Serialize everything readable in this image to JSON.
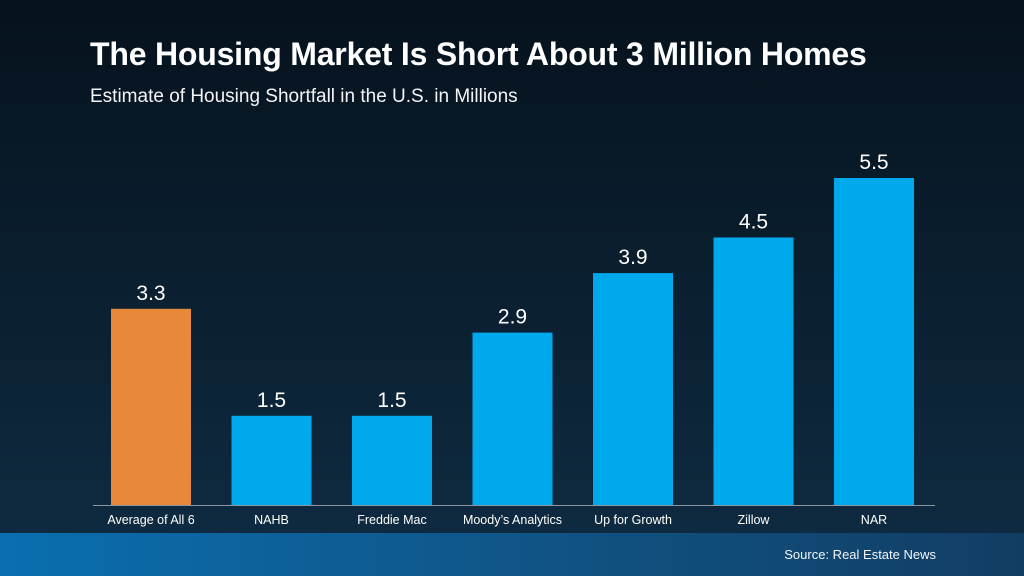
{
  "chart_data": {
    "type": "bar",
    "title": "The Housing Market Is Short About 3 Million Homes",
    "subtitle": "Estimate of Housing Shortfall in the U.S. in Millions",
    "categories": [
      "Average of All 6",
      "NAHB",
      "Freddie Mac",
      "Moody’s Analytics",
      "Up for Growth",
      "Zillow",
      "NAR"
    ],
    "values": [
      3.3,
      1.5,
      1.5,
      2.9,
      3.9,
      4.5,
      5.5
    ],
    "value_labels": [
      "3.3",
      "1.5",
      "1.5",
      "2.9",
      "3.9",
      "4.5",
      "5.5"
    ],
    "highlight_index": 0,
    "colors": {
      "highlight": "#e8883b",
      "bar": "#00a9ec",
      "axis": "#8a97a3"
    },
    "xlabel": "",
    "ylabel": "",
    "ylim": [
      0,
      5.5
    ],
    "grid": false,
    "legend": "none"
  },
  "footer": {
    "source": "Source: Real Estate News"
  }
}
